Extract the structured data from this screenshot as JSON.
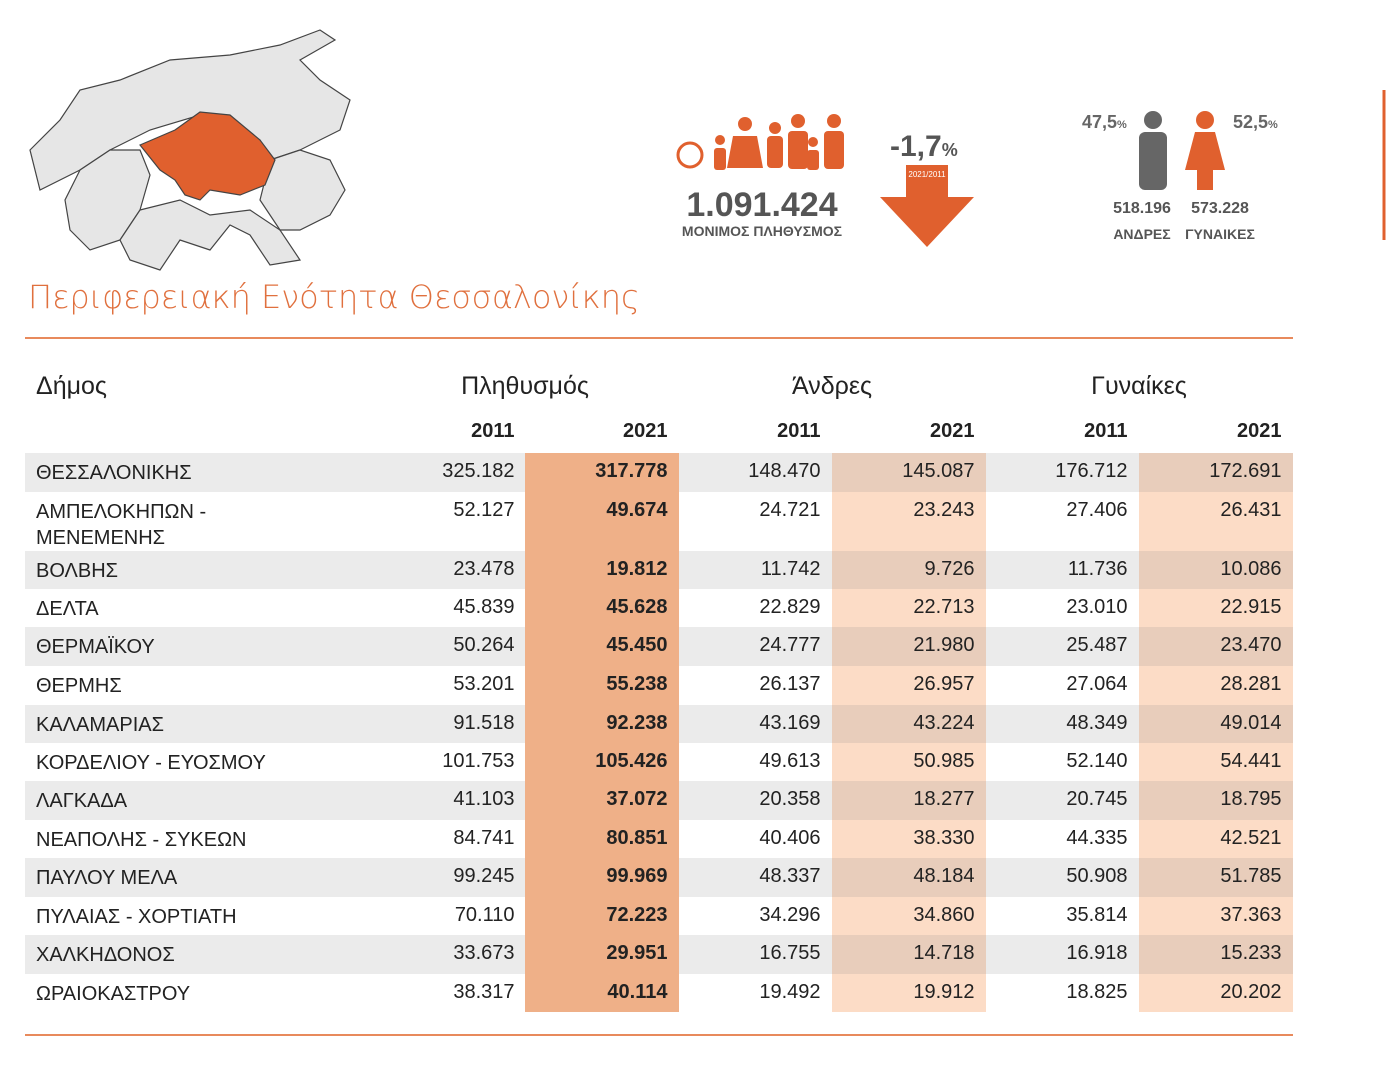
{
  "header": {
    "title": "Περιφερειακή Ενότητα Θεσσαλονίκης",
    "population": {
      "value": "1.091.424",
      "label": "ΜΟΝΙΜΟΣ ΠΛΗΘΥΣΜΟΣ"
    },
    "change": {
      "value": "-1,7",
      "unit": "%",
      "period": "2021/2011"
    },
    "men": {
      "percent": "47,5",
      "unit": "%",
      "count": "518.196",
      "label": "ΑΝΔΡΕΣ"
    },
    "women": {
      "percent": "52,5",
      "unit": "%",
      "count": "573.228",
      "label": "ΓΥΝΑΙΚΕΣ"
    }
  },
  "table": {
    "headers": [
      "Δήμος",
      "Πληθυσμός",
      "Άνδρες",
      "Γυναίκες"
    ],
    "years": [
      "2011",
      "2021",
      "2011",
      "2021",
      "2011",
      "2021"
    ],
    "rows": [
      [
        "ΘΕΣΣΑΛΟΝΙΚΗΣ",
        "325.182",
        "317.778",
        "148.470",
        "145.087",
        "176.712",
        "172.691"
      ],
      [
        "ΑΜΠΕΛΟΚΗΠΩΝ - ΜΕΝΕΜΕΝΗΣ",
        "52.127",
        "49.674",
        "24.721",
        "23.243",
        "27.406",
        "26.431"
      ],
      [
        "ΒΟΛΒΗΣ",
        "23.478",
        "19.812",
        "11.742",
        "9.726",
        "11.736",
        "10.086"
      ],
      [
        "ΔΕΛΤΑ",
        "45.839",
        "45.628",
        "22.829",
        "22.713",
        "23.010",
        "22.915"
      ],
      [
        "ΘΕΡΜΑΪΚΟΥ",
        "50.264",
        "45.450",
        "24.777",
        "21.980",
        "25.487",
        "23.470"
      ],
      [
        "ΘΕΡΜΗΣ",
        "53.201",
        "55.238",
        "26.137",
        "26.957",
        "27.064",
        "28.281"
      ],
      [
        "ΚΑΛΑΜΑΡΙΑΣ",
        "91.518",
        "92.238",
        "43.169",
        "43.224",
        "48.349",
        "49.014"
      ],
      [
        "ΚΟΡΔΕΛΙΟΥ - ΕΥΟΣΜΟΥ",
        "101.753",
        "105.426",
        "49.613",
        "50.985",
        "52.140",
        "54.441"
      ],
      [
        "ΛΑΓΚΑΔΑ",
        "41.103",
        "37.072",
        "20.358",
        "18.277",
        "20.745",
        "18.795"
      ],
      [
        "ΝΕΑΠΟΛΗΣ - ΣΥΚΕΩΝ",
        "84.741",
        "80.851",
        "40.406",
        "38.330",
        "44.335",
        "42.521"
      ],
      [
        "ΠΑΥΛΟΥ ΜΕΛΑ",
        "99.245",
        "99.969",
        "48.337",
        "48.184",
        "50.908",
        "51.785"
      ],
      [
        "ΠΥΛΑΙΑΣ - ΧΟΡΤΙΑΤΗ",
        "70.110",
        "72.223",
        "34.296",
        "34.860",
        "35.814",
        "37.363"
      ],
      [
        "ΧΑΛΚΗΔΟΝΟΣ",
        "33.673",
        "29.951",
        "16.755",
        "14.718",
        "16.918",
        "15.233"
      ],
      [
        "ΩΡΑΙΟΚΑΣΤΡΟΥ",
        "38.317",
        "40.114",
        "19.492",
        "19.912",
        "18.825",
        "20.202"
      ]
    ]
  }
}
